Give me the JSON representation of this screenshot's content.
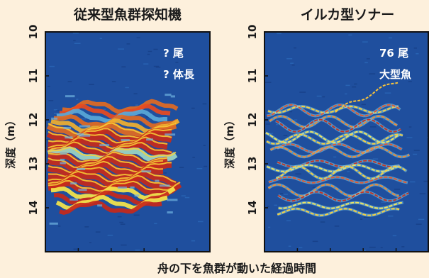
{
  "colors": {
    "background": "#fdf0dc",
    "sonar_bg": "#1f4f9e",
    "sonar_bg_dark": "#153c80",
    "frame": "#111111"
  },
  "chart_data": [
    {
      "type": "heatmap",
      "title": "従来型魚群探知機",
      "ylabel": "深度（m）",
      "ylim": [
        10,
        15
      ],
      "yticks": [
        "10",
        "11",
        "12",
        "13",
        "14"
      ],
      "annotations": [
        "? 尾",
        "? 体長"
      ],
      "style": "conventional",
      "school_depth_range": [
        11.7,
        14.1
      ]
    },
    {
      "type": "heatmap",
      "title": "イルカ型ソナー",
      "ylabel": "深度（m）",
      "ylim": [
        10,
        15
      ],
      "yticks": [
        "10",
        "11",
        "12",
        "13",
        "14"
      ],
      "annotations": [
        "76 尾",
        "大型魚"
      ],
      "style": "dolphin",
      "school_depth_range": [
        11.3,
        14.3
      ]
    }
  ],
  "xlabel": "舟の下を魚群が動いた経過時間"
}
